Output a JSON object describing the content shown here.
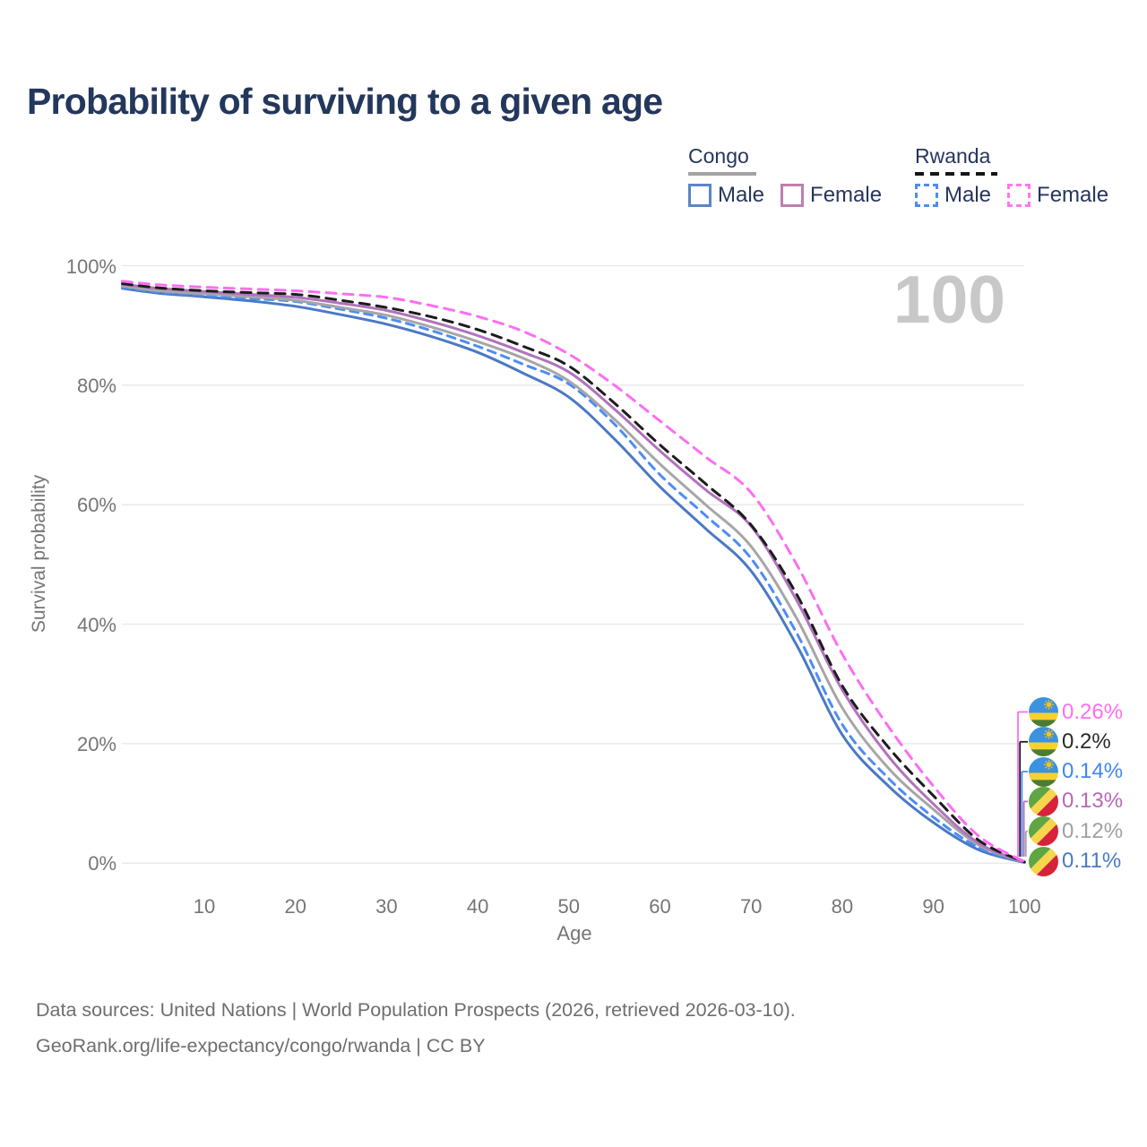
{
  "title": "Probability of surviving to a given age",
  "watermark": "100",
  "legend": {
    "groups": [
      {
        "name": "Congo",
        "line_style": "solid",
        "underline_color": "#a3a3a3",
        "items": [
          {
            "label": "Male",
            "color": "#5b85c7",
            "dashed": false
          },
          {
            "label": "Female",
            "color": "#bd7fae",
            "dashed": false
          }
        ]
      },
      {
        "name": "Rwanda",
        "line_style": "dashed",
        "underline_color": "#161616",
        "items": [
          {
            "label": "Male",
            "color": "#4e8cf5",
            "dashed": true
          },
          {
            "label": "Female",
            "color": "#ff77ee",
            "dashed": true
          }
        ]
      }
    ]
  },
  "chart_data": {
    "type": "line",
    "title": "Probability of surviving to a given age",
    "xlabel": "Age",
    "ylabel": "Survival probability",
    "xlim": [
      0,
      100
    ],
    "ylim": [
      0,
      100
    ],
    "grid": "horizontal",
    "legend_position": "top-right",
    "x_ticks": [
      "10",
      "20",
      "30",
      "40",
      "50",
      "60",
      "70",
      "80",
      "90",
      "100"
    ],
    "x_tick_values": [
      10,
      20,
      30,
      40,
      50,
      60,
      70,
      80,
      90,
      100
    ],
    "y_ticks": [
      "0%",
      "20%",
      "40%",
      "60%",
      "80%",
      "100%"
    ],
    "y_tick_values": [
      0,
      20,
      40,
      60,
      80,
      100
    ],
    "ages": [
      1,
      5,
      10,
      15,
      20,
      25,
      30,
      35,
      40,
      45,
      50,
      55,
      60,
      65,
      70,
      75,
      80,
      85,
      90,
      95,
      100
    ],
    "series": [
      {
        "id": "congo-male",
        "name": "Congo Male",
        "color": "#4a79c5",
        "dash": null,
        "width": 3,
        "values": [
          96.2,
          95.4,
          94.8,
          94.1,
          93.2,
          91.8,
          90.2,
          88.1,
          85.5,
          82.0,
          78.0,
          71.0,
          63.0,
          56.0,
          48.9,
          36.5,
          21.5,
          13.0,
          6.8,
          2.2,
          0.11
        ],
        "end_label": "0.11%",
        "end_label_color": "#4a79c5",
        "flag": "congo"
      },
      {
        "id": "rwanda-male",
        "name": "Rwanda Male",
        "color": "#4e8cf5",
        "dash": "9 7",
        "width": 3,
        "values": [
          96.4,
          95.6,
          95.0,
          94.5,
          94.0,
          92.7,
          91.2,
          89.1,
          86.5,
          83.5,
          80.2,
          73.5,
          65.0,
          58.2,
          51.0,
          38.5,
          23.2,
          14.3,
          7.7,
          2.6,
          0.14
        ],
        "end_label": "0.14%",
        "end_label_color": "#4285f4",
        "flag": "rwanda"
      },
      {
        "id": "congo-all",
        "name": "Congo (both sexes)",
        "color": "#a6a6a6",
        "dash": null,
        "width": 3,
        "values": [
          96.6,
          95.8,
          95.3,
          94.8,
          94.2,
          93.0,
          91.7,
          89.7,
          87.3,
          84.5,
          80.7,
          74.3,
          66.8,
          60.0,
          53.0,
          41.0,
          26.0,
          16.0,
          9.0,
          3.0,
          0.12
        ],
        "end_label": "0.12%",
        "end_label_color": "#a0a0a0",
        "flag": "congo"
      },
      {
        "id": "congo-female",
        "name": "Congo Female",
        "color": "#b172bd",
        "dash": null,
        "width": 3,
        "values": [
          96.9,
          96.2,
          95.7,
          95.2,
          94.7,
          93.7,
          92.5,
          90.6,
          88.3,
          85.5,
          82.2,
          76.0,
          69.0,
          62.5,
          56.4,
          44.0,
          29.0,
          18.0,
          9.9,
          3.3,
          0.13
        ],
        "end_label": "0.13%",
        "end_label_color": "#b668b8",
        "flag": "congo"
      },
      {
        "id": "rwanda-all",
        "name": "Rwanda (both sexes)",
        "color": "#1c1c1c",
        "dash": "11 8",
        "width": 3,
        "values": [
          97.0,
          96.3,
          95.8,
          95.5,
          95.2,
          94.2,
          93.0,
          91.4,
          89.3,
          86.5,
          83.2,
          77.0,
          70.0,
          63.5,
          56.6,
          45.0,
          29.7,
          19.5,
          11.3,
          3.8,
          0.2
        ],
        "end_label": "0.2%",
        "end_label_color": "#2a2a2a",
        "flag": "rwanda"
      },
      {
        "id": "rwanda-female",
        "name": "Rwanda Female",
        "color": "#fc6ef2",
        "dash": "11 8",
        "width": 3,
        "values": [
          97.4,
          96.8,
          96.4,
          96.1,
          95.8,
          95.3,
          94.7,
          93.3,
          91.5,
          89.0,
          85.2,
          80.0,
          74.0,
          68.0,
          62.0,
          50.0,
          35.0,
          23.0,
          12.9,
          4.5,
          0.26
        ],
        "end_label": "0.26%",
        "end_label_color": "#ff6ef0",
        "flag": "rwanda"
      }
    ]
  },
  "footer": {
    "line1": "Data sources: United Nations | World Population Prospects (2026, retrieved 2026-03-10).",
    "line2": "GeoRank.org/life-expectancy/congo/rwanda | CC BY"
  }
}
